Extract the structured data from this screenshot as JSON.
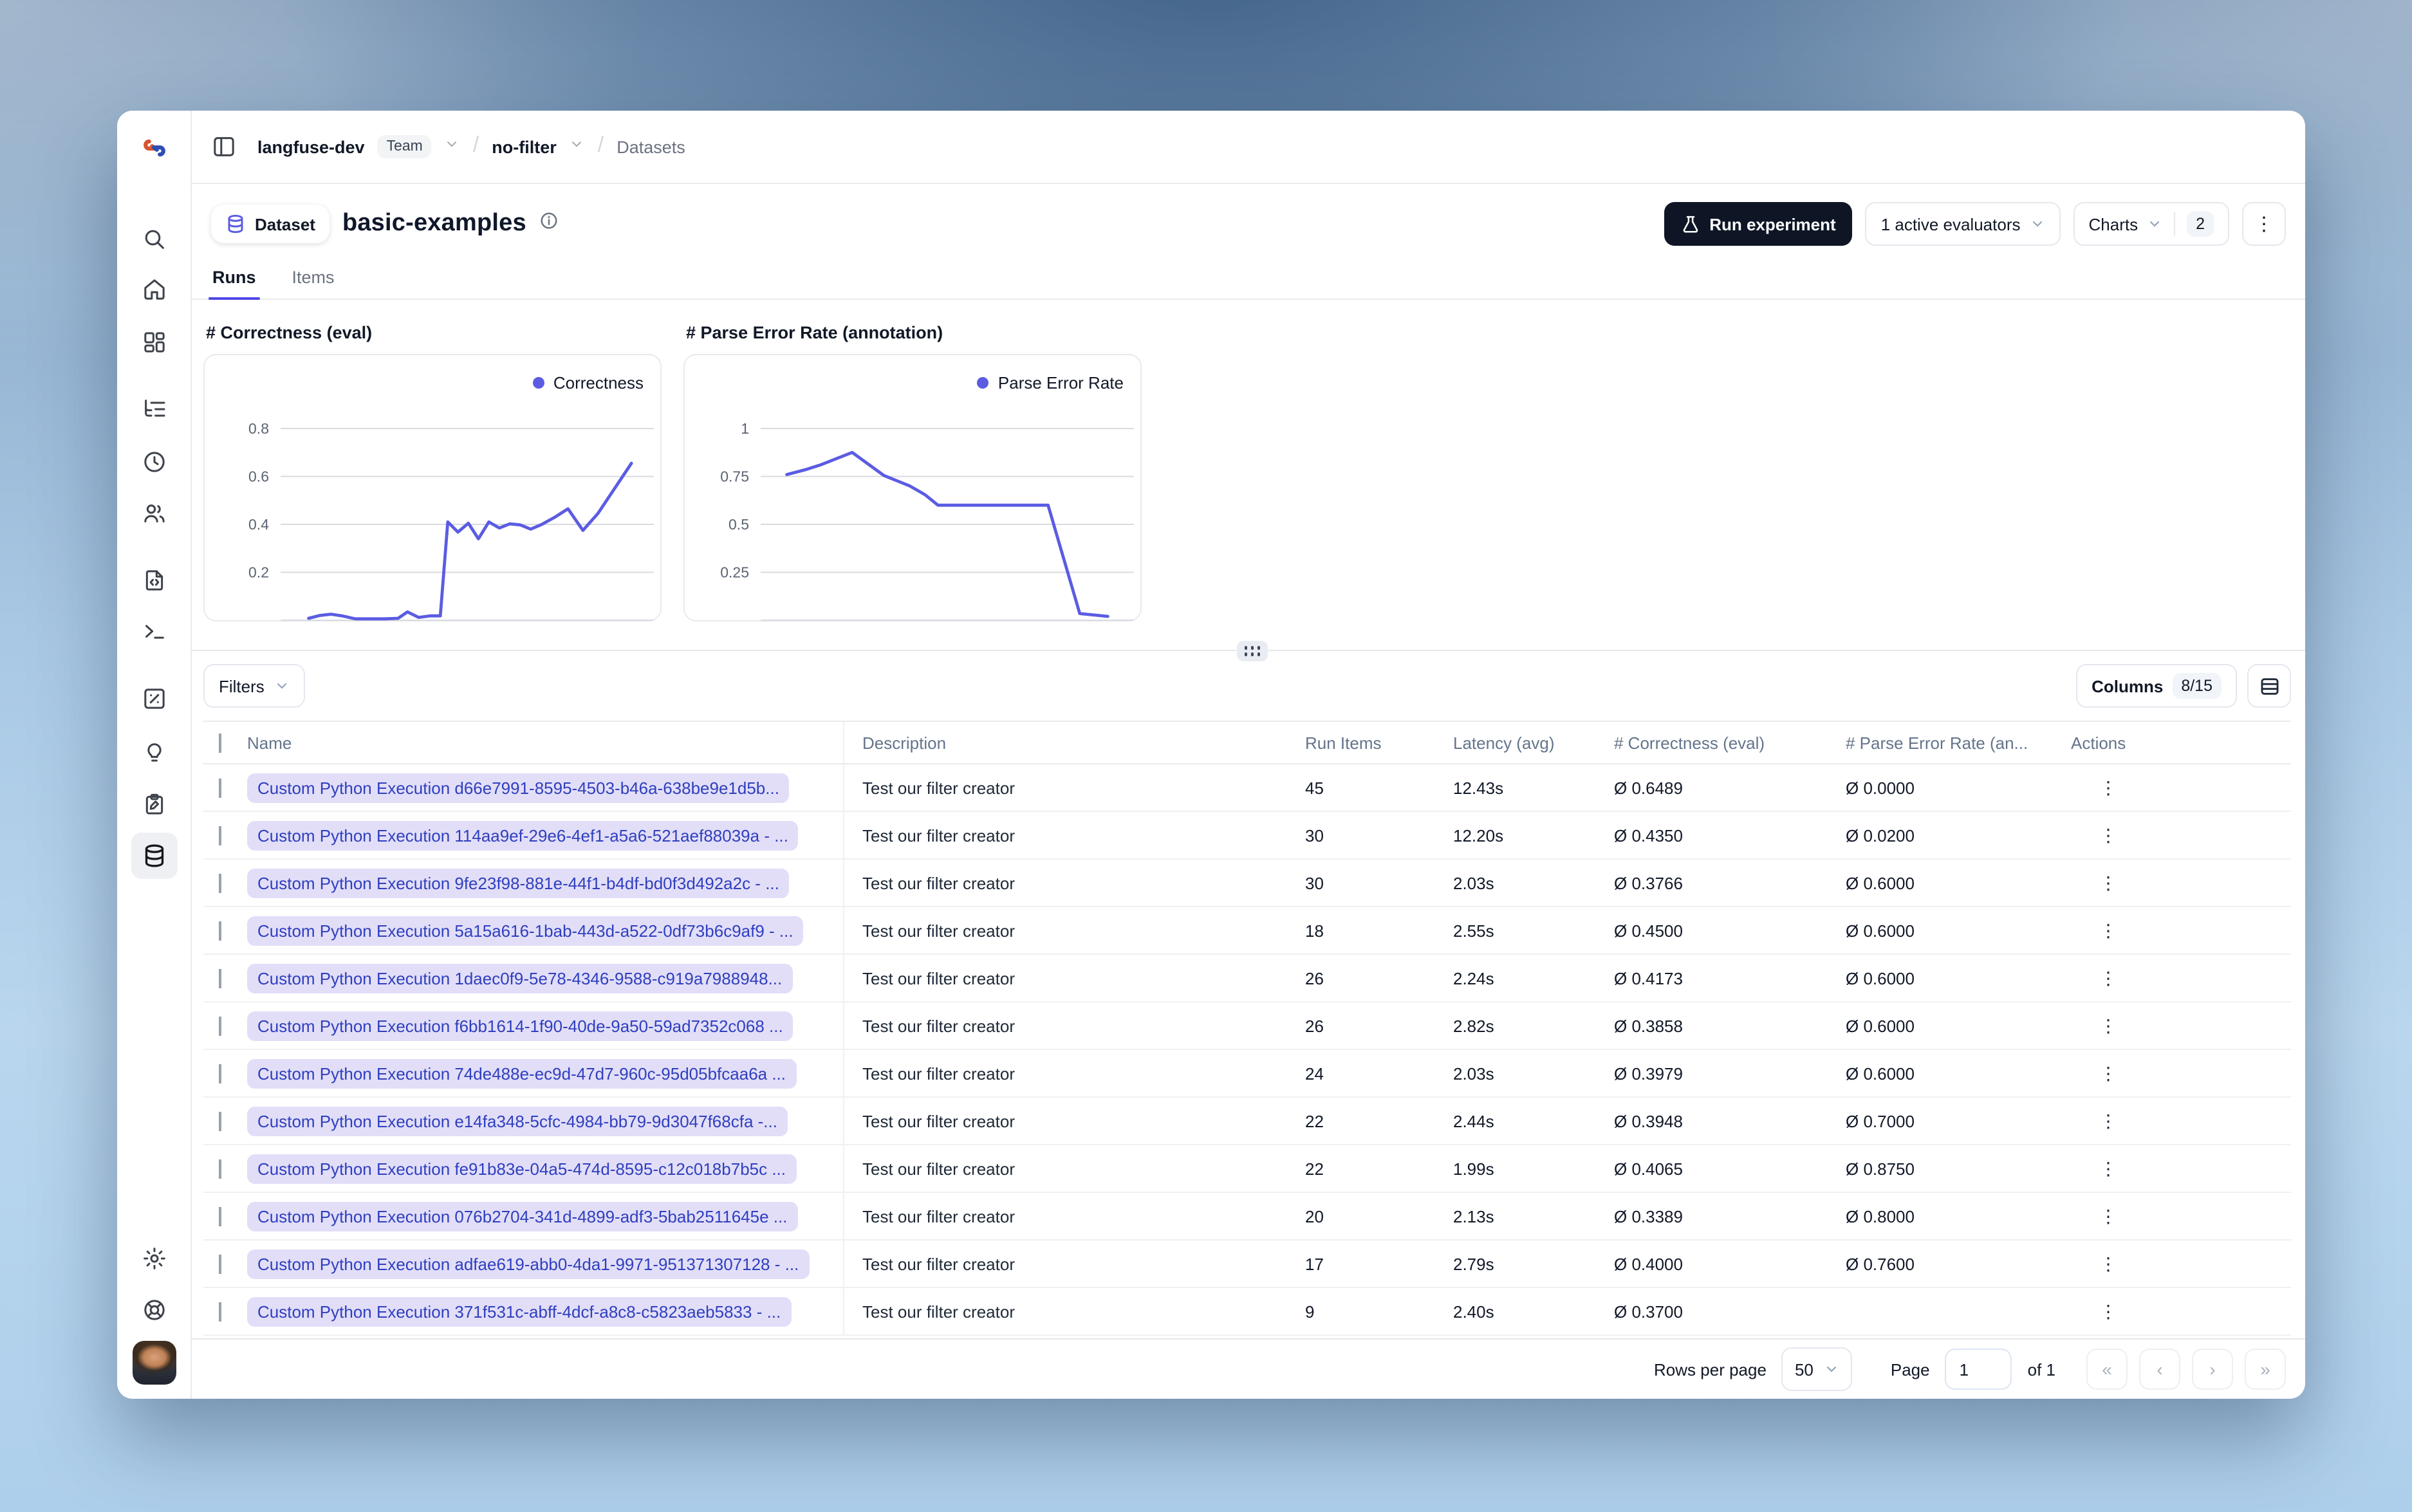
{
  "topbar": {
    "org": "langfuse-dev",
    "org_badge": "Team",
    "project": "no-filter",
    "section": "Datasets"
  },
  "header": {
    "entity_label": "Dataset",
    "title": "basic-examples",
    "run_experiment_label": "Run experiment",
    "evaluators_label": "1 active evaluators",
    "charts_label": "Charts",
    "charts_count": "2"
  },
  "tabs": {
    "runs": "Runs",
    "items": "Items"
  },
  "accent_color": "#5b5ce2",
  "chart_data": [
    {
      "type": "line",
      "title": "# Correctness (eval)",
      "legend_position": "top-right",
      "grid": true,
      "y_ticks": [
        0.2,
        0.4,
        0.6,
        0.8
      ],
      "ylim": [
        0,
        0.9
      ],
      "color": "#5b5ce2",
      "series": [
        {
          "name": "Correctness",
          "points": [
            [
              0.075,
              0.008
            ],
            [
              0.105,
              0.02
            ],
            [
              0.135,
              0.025
            ],
            [
              0.165,
              0.018
            ],
            [
              0.2,
              0.006
            ],
            [
              0.24,
              0.006
            ],
            [
              0.28,
              0.006
            ],
            [
              0.315,
              0.008
            ],
            [
              0.34,
              0.035
            ],
            [
              0.37,
              0.012
            ],
            [
              0.4,
              0.018
            ],
            [
              0.428,
              0.018
            ],
            [
              0.448,
              0.41
            ],
            [
              0.475,
              0.368
            ],
            [
              0.503,
              0.405
            ],
            [
              0.53,
              0.34
            ],
            [
              0.558,
              0.41
            ],
            [
              0.586,
              0.385
            ],
            [
              0.614,
              0.402
            ],
            [
              0.642,
              0.398
            ],
            [
              0.67,
              0.38
            ],
            [
              0.7,
              0.4
            ],
            [
              0.735,
              0.43
            ],
            [
              0.77,
              0.465
            ],
            [
              0.81,
              0.375
            ],
            [
              0.85,
              0.445
            ],
            [
              0.94,
              0.655
            ]
          ]
        }
      ]
    },
    {
      "type": "line",
      "title": "# Parse Error Rate (annotation)",
      "legend_position": "top-right",
      "grid": true,
      "y_ticks": [
        0.25,
        0.5,
        0.75,
        1
      ],
      "ylim": [
        0,
        1.1
      ],
      "color": "#5b5ce2",
      "series": [
        {
          "name": "Parse Error Rate",
          "points": [
            [
              0.07,
              0.76
            ],
            [
              0.12,
              0.785
            ],
            [
              0.16,
              0.81
            ],
            [
              0.245,
              0.875
            ],
            [
              0.33,
              0.755
            ],
            [
              0.4,
              0.7
            ],
            [
              0.44,
              0.655
            ],
            [
              0.475,
              0.6
            ],
            [
              0.77,
              0.6
            ],
            [
              0.855,
              0.035
            ],
            [
              0.93,
              0.02
            ]
          ]
        }
      ]
    }
  ],
  "filterbar": {
    "filters_label": "Filters",
    "columns_label": "Columns",
    "columns_count": "8/15"
  },
  "table": {
    "headers": [
      "Name",
      "Description",
      "Run Items",
      "Latency (avg)",
      "# Correctness (eval)",
      "# Parse Error Rate (an...",
      "Actions"
    ],
    "rows": [
      {
        "name": "Custom Python Execution d66e7991-8595-4503-b46a-638be9e1d5b...",
        "description": "Test our filter creator",
        "run_items": "45",
        "latency": "12.43s",
        "correctness": "Ø 0.6489",
        "parse_error": "Ø 0.0000"
      },
      {
        "name": "Custom Python Execution 114aa9ef-29e6-4ef1-a5a6-521aef88039a - ...",
        "description": "Test our filter creator",
        "run_items": "30",
        "latency": "12.20s",
        "correctness": "Ø 0.4350",
        "parse_error": "Ø 0.0200"
      },
      {
        "name": "Custom Python Execution 9fe23f98-881e-44f1-b4df-bd0f3d492a2c - ...",
        "description": "Test our filter creator",
        "run_items": "30",
        "latency": "2.03s",
        "correctness": "Ø 0.3766",
        "parse_error": "Ø 0.6000"
      },
      {
        "name": "Custom Python Execution 5a15a616-1bab-443d-a522-0df73b6c9af9 - ...",
        "description": "Test our filter creator",
        "run_items": "18",
        "latency": "2.55s",
        "correctness": "Ø 0.4500",
        "parse_error": "Ø 0.6000"
      },
      {
        "name": "Custom Python Execution 1daec0f9-5e78-4346-9588-c919a7988948...",
        "description": "Test our filter creator",
        "run_items": "26",
        "latency": "2.24s",
        "correctness": "Ø 0.4173",
        "parse_error": "Ø 0.6000"
      },
      {
        "name": "Custom Python Execution f6bb1614-1f90-40de-9a50-59ad7352c068 ...",
        "description": "Test our filter creator",
        "run_items": "26",
        "latency": "2.82s",
        "correctness": "Ø 0.3858",
        "parse_error": "Ø 0.6000"
      },
      {
        "name": "Custom Python Execution 74de488e-ec9d-47d7-960c-95d05bfcaa6a ...",
        "description": "Test our filter creator",
        "run_items": "24",
        "latency": "2.03s",
        "correctness": "Ø 0.3979",
        "parse_error": "Ø 0.6000"
      },
      {
        "name": "Custom Python Execution e14fa348-5cfc-4984-bb79-9d3047f68cfa -...",
        "description": "Test our filter creator",
        "run_items": "22",
        "latency": "2.44s",
        "correctness": "Ø 0.3948",
        "parse_error": "Ø 0.7000"
      },
      {
        "name": "Custom Python Execution fe91b83e-04a5-474d-8595-c12c018b7b5c ...",
        "description": "Test our filter creator",
        "run_items": "22",
        "latency": "1.99s",
        "correctness": "Ø 0.4065",
        "parse_error": "Ø 0.8750"
      },
      {
        "name": "Custom Python Execution 076b2704-341d-4899-adf3-5bab2511645e ...",
        "description": "Test our filter creator",
        "run_items": "20",
        "latency": "2.13s",
        "correctness": "Ø 0.3389",
        "parse_error": "Ø 0.8000"
      },
      {
        "name": "Custom Python Execution adfae619-abb0-4da1-9971-951371307128 - ...",
        "description": "Test our filter creator",
        "run_items": "17",
        "latency": "2.79s",
        "correctness": "Ø 0.4000",
        "parse_error": "Ø 0.7600"
      },
      {
        "name": "Custom Python Execution 371f531c-abff-4dcf-a8c8-c5823aeb5833 - ...",
        "description": "Test our filter creator",
        "run_items": "9",
        "latency": "2.40s",
        "correctness": "Ø 0.3700",
        "parse_error": ""
      }
    ]
  },
  "pagination": {
    "rows_per_page_label": "Rows per page",
    "rows_per_page_value": "50",
    "page_label": "Page",
    "page_value": "1",
    "of_label": "of 1"
  }
}
